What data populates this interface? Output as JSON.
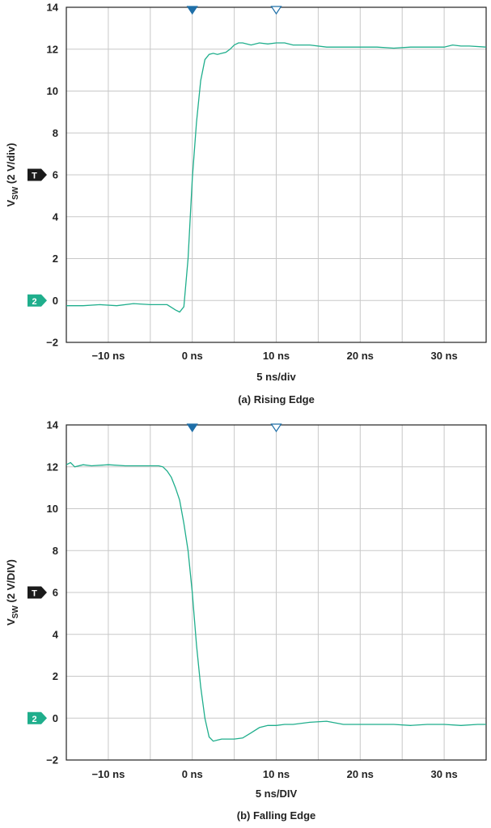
{
  "chart_data": [
    {
      "type": "line",
      "caption": "(a) Rising Edge",
      "xlabel": "5 ns/div",
      "ylabel_main": "V",
      "ylabel_sub": "SW",
      "ylabel_rest": " (2 V/div)",
      "xlim": [
        -15,
        35
      ],
      "ylim": [
        -2,
        14
      ],
      "x_ticks": [
        -10,
        0,
        10,
        20,
        30
      ],
      "x_tick_labels": [
        "−10 ns",
        "0 ns",
        "10 ns",
        "20 ns",
        "30 ns"
      ],
      "y_ticks": [
        -2,
        0,
        2,
        4,
        6,
        8,
        10,
        12,
        14
      ],
      "y_tick_labels": [
        "−2",
        "0",
        "2",
        "4",
        "6",
        "8",
        "10",
        "12",
        "14"
      ],
      "grid": true,
      "trigger_marker": {
        "label": "T",
        "y": 6,
        "color": "#1a1a1a"
      },
      "channel_marker": {
        "label": "2",
        "y": 0,
        "color": "#1fae8c"
      },
      "top_markers": [
        {
          "x": 0,
          "filled": true
        },
        {
          "x": 10,
          "filled": false
        }
      ],
      "trace_color": "#1fae8c",
      "series": [
        {
          "x": [
            -15,
            -13,
            -11,
            -9,
            -7,
            -5,
            -3,
            -2,
            -1.5,
            -1,
            -0.5,
            0,
            0.5,
            1,
            1.5,
            2,
            2.5,
            3,
            3.5,
            4,
            4.5,
            5,
            5.5,
            6,
            7,
            8,
            9,
            10,
            11,
            12,
            14,
            16,
            18,
            20,
            22,
            24,
            26,
            28,
            30,
            31,
            32,
            33,
            35
          ],
          "y": [
            -0.25,
            -0.25,
            -0.2,
            -0.25,
            -0.15,
            -0.2,
            -0.2,
            -0.45,
            -0.55,
            -0.3,
            2.0,
            5.8,
            8.5,
            10.5,
            11.5,
            11.75,
            11.8,
            11.75,
            11.8,
            11.85,
            12.0,
            12.2,
            12.3,
            12.3,
            12.2,
            12.3,
            12.25,
            12.3,
            12.3,
            12.2,
            12.2,
            12.1,
            12.1,
            12.1,
            12.1,
            12.05,
            12.1,
            12.1,
            12.1,
            12.2,
            12.15,
            12.15,
            12.1
          ]
        }
      ]
    },
    {
      "type": "line",
      "caption": "(b) Falling Edge",
      "xlabel": "5 ns/DIV",
      "ylabel_main": "V",
      "ylabel_sub": "SW",
      "ylabel_rest": " (2 V/DIV)",
      "xlim": [
        -15,
        35
      ],
      "ylim": [
        -2,
        14
      ],
      "x_ticks": [
        -10,
        0,
        10,
        20,
        30
      ],
      "x_tick_labels": [
        "−10 ns",
        "0 ns",
        "10 ns",
        "20 ns",
        "30 ns"
      ],
      "y_ticks": [
        -2,
        0,
        2,
        4,
        6,
        8,
        10,
        12,
        14
      ],
      "y_tick_labels": [
        "−2",
        "0",
        "2",
        "4",
        "6",
        "8",
        "10",
        "12",
        "14"
      ],
      "grid": true,
      "trigger_marker": {
        "label": "T",
        "y": 6,
        "color": "#1a1a1a"
      },
      "channel_marker": {
        "label": "2",
        "y": 0,
        "color": "#1fae8c"
      },
      "top_markers": [
        {
          "x": 0,
          "filled": true
        },
        {
          "x": 10,
          "filled": false
        }
      ],
      "trace_color": "#1fae8c",
      "series": [
        {
          "x": [
            -15,
            -14.5,
            -14,
            -13,
            -12,
            -10,
            -8,
            -6,
            -4,
            -3.5,
            -3,
            -2.5,
            -2,
            -1.5,
            -1,
            -0.5,
            0,
            0.5,
            1,
            1.5,
            2,
            2.5,
            3,
            3.5,
            4,
            5,
            6,
            7,
            8,
            9,
            10,
            11,
            12,
            14,
            16,
            18,
            20,
            22,
            24,
            26,
            28,
            30,
            32,
            34,
            35
          ],
          "y": [
            12.1,
            12.2,
            12.0,
            12.1,
            12.05,
            12.1,
            12.05,
            12.05,
            12.05,
            12.0,
            11.8,
            11.5,
            11.0,
            10.4,
            9.3,
            8.0,
            6.0,
            3.5,
            1.5,
            0.0,
            -0.9,
            -1.1,
            -1.05,
            -1.0,
            -1.0,
            -1.0,
            -0.95,
            -0.7,
            -0.45,
            -0.35,
            -0.35,
            -0.3,
            -0.3,
            -0.2,
            -0.15,
            -0.3,
            -0.3,
            -0.3,
            -0.3,
            -0.35,
            -0.3,
            -0.3,
            -0.35,
            -0.3,
            -0.3
          ]
        }
      ]
    }
  ]
}
